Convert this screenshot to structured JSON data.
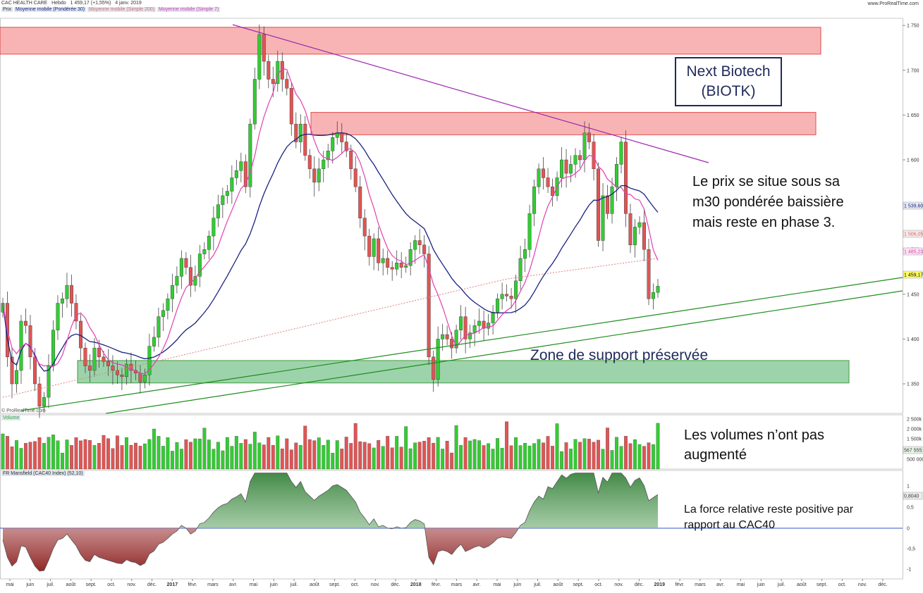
{
  "header": {
    "instrument": "CAC HEALTH CARE",
    "period": "Hebdo",
    "last": "1 459,17 (+1,55%)",
    "date": "4 janv. 2019",
    "legend": [
      "Prix",
      "Moyenne mobile (Pondérée 30)",
      "Moyenne mobile (Simple 200)",
      "Moyenne mobile (Simple 7)"
    ],
    "site": "www.ProRealTime.com"
  },
  "watermark": "© ProRealTime.com",
  "annotations": {
    "title_line1": "Next Biotech",
    "title_line2": "(BIOTK)",
    "price_note_1": "Le prix se situe sous sa",
    "price_note_2": "m30 pondérée baissière",
    "price_note_3": "mais reste en phase 3.",
    "support_label": "Zone de support préservée",
    "volume_note_1": "Les volumes n’ont pas",
    "volume_note_2": "augmenté",
    "mansfield_note_1": "La force relative reste positive par",
    "mansfield_note_2": "rapport au CAC40"
  },
  "panels": {
    "volume_label": "Volume",
    "mansfield_label": "FR Mansfield (CAC40 Index) (52,10)"
  },
  "badges": {
    "wma30": "1 539,60",
    "sma200": "1 506,05",
    "sma7": "1 485,23",
    "last": "1 459,17",
    "volume": "567 555",
    "mansfield": "0,8040"
  },
  "colors": {
    "up": "#33cc33",
    "down": "#e05555",
    "wma30": "#1a237e",
    "sma7": "#e040b0",
    "sma200": "#e08080",
    "resistance": "#9c27b0",
    "support_lines": "#1e8c1e",
    "resistance_zone": "#f7a8a8",
    "support_zone": "#8ccc9c"
  },
  "chart_data": {
    "type": "candlestick",
    "x_start": "mai 2016",
    "interval": "weekly",
    "y_ticks": [
      1350,
      1400,
      1450,
      1500,
      1550,
      1600,
      1650,
      1700,
      1750
    ],
    "y_tick_labels": [
      "1 350",
      "1 400",
      "1 450",
      "1 500",
      "1 550",
      "1 600",
      "1 650",
      "1 700",
      "1 750"
    ],
    "ylim": [
      1317,
      1758
    ],
    "x_axis": [
      {
        "label": "mai",
        "bold": false
      },
      {
        "label": "juin",
        "bold": false
      },
      {
        "label": "juil.",
        "bold": false
      },
      {
        "label": "août",
        "bold": false
      },
      {
        "label": "sept.",
        "bold": false
      },
      {
        "label": "oct.",
        "bold": false
      },
      {
        "label": "nov.",
        "bold": false
      },
      {
        "label": "déc.",
        "bold": false
      },
      {
        "label": "2017",
        "bold": true
      },
      {
        "label": "févr.",
        "bold": false
      },
      {
        "label": "mars",
        "bold": false
      },
      {
        "label": "avr.",
        "bold": false
      },
      {
        "label": "mai",
        "bold": false
      },
      {
        "label": "juin",
        "bold": false
      },
      {
        "label": "juil.",
        "bold": false
      },
      {
        "label": "août",
        "bold": false
      },
      {
        "label": "sept.",
        "bold": false
      },
      {
        "label": "oct.",
        "bold": false
      },
      {
        "label": "nov.",
        "bold": false
      },
      {
        "label": "déc.",
        "bold": false
      },
      {
        "label": "2018",
        "bold": true
      },
      {
        "label": "févr.",
        "bold": false
      },
      {
        "label": "mars",
        "bold": false
      },
      {
        "label": "avr.",
        "bold": false
      },
      {
        "label": "mai",
        "bold": false
      },
      {
        "label": "juin",
        "bold": false
      },
      {
        "label": "juil.",
        "bold": false
      },
      {
        "label": "août",
        "bold": false
      },
      {
        "label": "sept.",
        "bold": false
      },
      {
        "label": "oct.",
        "bold": false
      },
      {
        "label": "nov.",
        "bold": false
      },
      {
        "label": "déc.",
        "bold": false
      },
      {
        "label": "2019",
        "bold": true
      },
      {
        "label": "févr.",
        "bold": false
      },
      {
        "label": "mars",
        "bold": false
      },
      {
        "label": "avr.",
        "bold": false
      },
      {
        "label": "mai",
        "bold": false
      },
      {
        "label": "juin",
        "bold": false
      },
      {
        "label": "juil.",
        "bold": false
      },
      {
        "label": "août",
        "bold": false
      },
      {
        "label": "sept.",
        "bold": false
      },
      {
        "label": "oct.",
        "bold": false
      },
      {
        "label": "nov.",
        "bold": false
      },
      {
        "label": "déc.",
        "bold": false
      }
    ],
    "close": [
      1440,
      1380,
      1350,
      1365,
      1420,
      1415,
      1380,
      1350,
      1325,
      1335,
      1370,
      1410,
      1440,
      1445,
      1460,
      1440,
      1420,
      1390,
      1370,
      1365,
      1390,
      1380,
      1375,
      1370,
      1365,
      1360,
      1358,
      1372,
      1365,
      1362,
      1352,
      1360,
      1392,
      1402,
      1425,
      1432,
      1445,
      1460,
      1470,
      1490,
      1480,
      1460,
      1470,
      1495,
      1500,
      1515,
      1535,
      1550,
      1560,
      1565,
      1580,
      1588,
      1598,
      1570,
      1640,
      1690,
      1740,
      1710,
      1690,
      1685,
      1710,
      1690,
      1680,
      1640,
      1620,
      1640,
      1605,
      1590,
      1575,
      1590,
      1600,
      1610,
      1625,
      1630,
      1620,
      1610,
      1590,
      1570,
      1535,
      1515,
      1492,
      1512,
      1485,
      1490,
      1480,
      1478,
      1485,
      1480,
      1482,
      1500,
      1510,
      1505,
      1495,
      1380,
      1355,
      1400,
      1405,
      1400,
      1390,
      1410,
      1425,
      1400,
      1407,
      1415,
      1420,
      1412,
      1418,
      1430,
      1445,
      1450,
      1448,
      1445,
      1465,
      1490,
      1500,
      1540,
      1570,
      1590,
      1580,
      1570,
      1560,
      1580,
      1600,
      1585,
      1595,
      1605,
      1600,
      1630,
      1620,
      1590,
      1510,
      1560,
      1540,
      1570,
      1595,
      1620,
      1540,
      1505,
      1525,
      1530,
      1500,
      1445,
      1452,
      1459
    ]
  }
}
